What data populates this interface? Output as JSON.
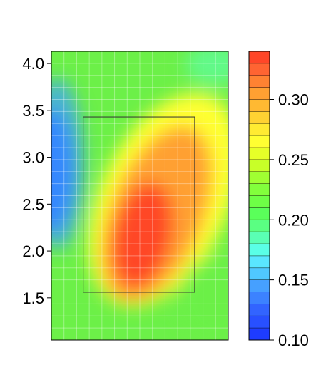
{
  "chart_data": {
    "type": "heatmap",
    "title": "",
    "xlabel": "",
    "ylabel": "",
    "x_ticks": [],
    "y_ticks": [
      "1.5",
      "2.0",
      "2.5",
      "3.0",
      "3.5",
      "4.0"
    ],
    "y_tick_values": [
      1.5,
      2.0,
      2.5,
      3.0,
      3.5,
      4.0
    ],
    "ylim": [
      1.05,
      4.13
    ],
    "xlim": [
      0,
      1
    ],
    "grid": true,
    "colorbar": {
      "ticks": [
        "0.10",
        "0.15",
        "0.20",
        "0.25",
        "0.30"
      ],
      "tick_values": [
        0.1,
        0.15,
        0.2,
        0.25,
        0.3
      ],
      "range": [
        0.1,
        0.34
      ],
      "levels": 24,
      "colors": [
        "#1e3cff",
        "#2850ff",
        "#3264ff",
        "#3c82ff",
        "#46a0ff",
        "#50c8ff",
        "#5ae6ff",
        "#5affe6",
        "#5affb4",
        "#5aff82",
        "#5aff5a",
        "#6eff46",
        "#82ff3c",
        "#a0ff32",
        "#c8ff28",
        "#e6ff28",
        "#ffff32",
        "#ffeb32",
        "#ffd232",
        "#ffb932",
        "#ffa032",
        "#ff8232",
        "#ff6432",
        "#ff4628"
      ]
    },
    "highlight_box": {
      "x": [
        0.18,
        0.81
      ],
      "y": [
        1.56,
        3.43
      ]
    }
  }
}
